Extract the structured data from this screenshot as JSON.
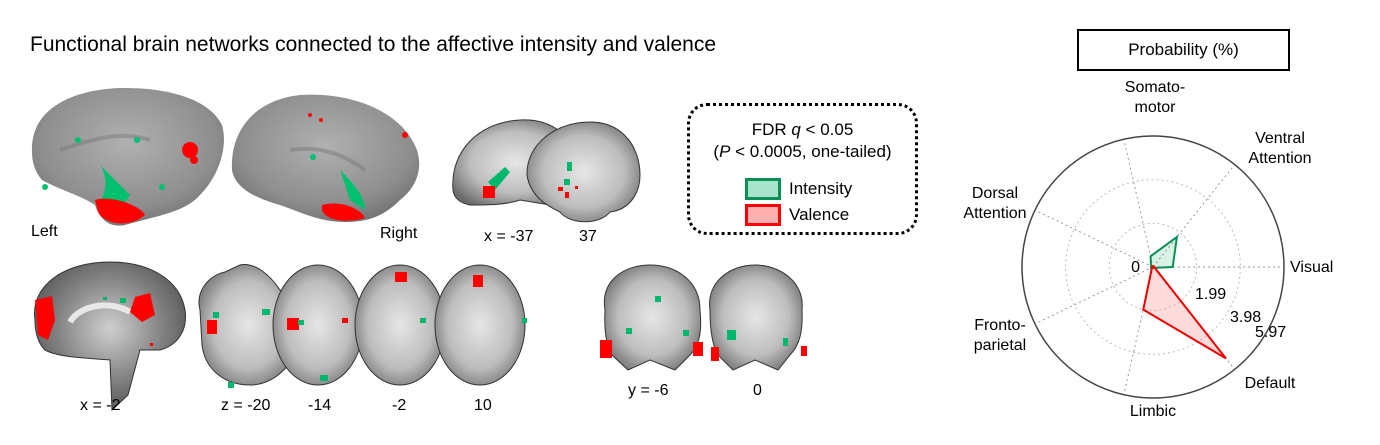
{
  "figure": {
    "title": "Functional brain networks connected to the affective intensity and valence",
    "surface_labels": {
      "left": "Left",
      "right": "Right"
    },
    "sagittal_lateral": {
      "coord_label": "x = -37",
      "second": "37"
    },
    "sagittal_medial": {
      "coord_label": "x = -2"
    },
    "axial": {
      "labels": [
        "z = -20",
        "-14",
        "-2",
        "10"
      ]
    },
    "coronal": {
      "labels": [
        "y = -6",
        "0"
      ]
    },
    "legend": {
      "line1_prefix": "FDR ",
      "line1_var": "q",
      "line1_suffix": " < 0.05",
      "line2_prefix": "(",
      "line2_var": "P",
      "line2_suffix": " < 0.0005, one-tailed)",
      "items": [
        {
          "label": "Intensity",
          "color": "#0a8f55",
          "fill": "#a8e3cc"
        },
        {
          "label": "Valence",
          "color": "#ff0000",
          "fill": "#ffb0b0"
        }
      ]
    },
    "colors": {
      "intensity": "#00b86b",
      "valence": "#ff0000",
      "brain_gray": "#9a9a9a"
    }
  },
  "chart_data": {
    "type": "radar",
    "title": "Probability (%)",
    "axes": [
      "Visual",
      "Ventral Attention",
      "Somatomotor",
      "Dorsal Attention",
      "Frontoparietal",
      "Limbic",
      "Default"
    ],
    "axis_label_lines": [
      [
        "Visual"
      ],
      [
        "Ventral",
        "Attention"
      ],
      [
        "Somato-",
        "motor"
      ],
      [
        "Dorsal",
        "Attention"
      ],
      [
        "Fronto-",
        "parietal"
      ],
      [
        "Limbic"
      ],
      [
        "Default"
      ]
    ],
    "radial_ticks": [
      "0",
      "1.99",
      "3.98",
      "5.97"
    ],
    "rmax": 5.97,
    "series": [
      {
        "name": "Intensity",
        "color": "#0a8f55",
        "fill": "rgba(10,160,90,0.15)",
        "values": [
          0.9,
          1.75,
          0.5,
          0.1,
          0.1,
          0.05,
          0.05
        ]
      },
      {
        "name": "Valence",
        "color": "#ee0000",
        "fill": "rgba(255,80,80,0.2)",
        "values": [
          0.05,
          0.05,
          0.05,
          0.05,
          0.05,
          1.99,
          5.33
        ]
      }
    ]
  }
}
